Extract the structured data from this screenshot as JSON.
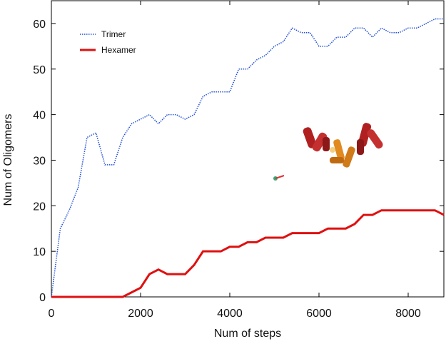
{
  "chart_data": {
    "type": "line",
    "x_label": "Num of steps",
    "y_label": "Num of Oligomers",
    "x": [
      0,
      200,
      400,
      600,
      800,
      1000,
      1200,
      1400,
      1600,
      1800,
      2000,
      2200,
      2400,
      2600,
      2800,
      3000,
      3200,
      3400,
      3600,
      3800,
      4000,
      4200,
      4400,
      4600,
      4800,
      5000,
      5200,
      5400,
      5600,
      5800,
      6000,
      6200,
      6400,
      6600,
      6800,
      7000,
      7200,
      7400,
      7600,
      7800,
      8000,
      8200,
      8400,
      8600,
      8800
    ],
    "series": [
      {
        "name": "Trimer",
        "color": "#1f4fd8",
        "values": [
          0,
          15,
          19,
          24,
          35,
          36,
          29,
          29,
          35,
          38,
          39,
          40,
          38,
          40,
          40,
          39,
          40,
          44,
          45,
          45,
          45,
          50,
          50,
          52,
          53,
          55,
          56,
          59,
          58,
          58,
          55,
          55,
          57,
          57,
          59,
          59,
          57,
          59,
          58,
          58,
          59,
          59,
          60,
          61,
          61
        ]
      },
      {
        "name": "Hexamer",
        "color": "#e01010",
        "values": [
          0,
          0,
          0,
          0,
          0,
          0,
          0,
          0,
          0,
          1,
          2,
          5,
          6,
          5,
          5,
          5,
          7,
          10,
          10,
          10,
          11,
          11,
          12,
          12,
          13,
          13,
          13,
          14,
          14,
          14,
          14,
          15,
          15,
          15,
          16,
          18,
          18,
          19,
          19,
          19,
          19,
          19,
          19,
          19,
          18
        ]
      }
    ],
    "xlim": [
      0,
      8800
    ],
    "ylim": [
      0,
      65
    ],
    "xticks": [
      0,
      2000,
      4000,
      6000,
      8000
    ],
    "yticks": [
      0,
      10,
      20,
      30,
      40,
      50,
      60
    ]
  }
}
